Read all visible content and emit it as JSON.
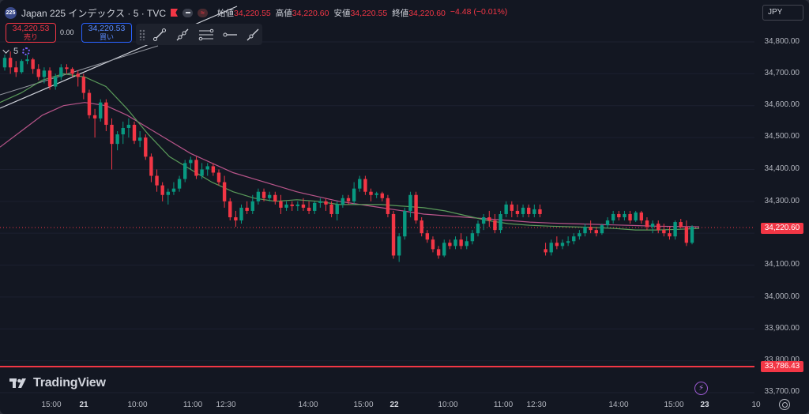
{
  "header": {
    "badge": "225",
    "title": "Japan 225 インデックス · 5 · TVC",
    "ohlc": [
      {
        "k": "始値",
        "v": "34,220.55"
      },
      {
        "k": "高値",
        "v": "34,220.60"
      },
      {
        "k": "安値",
        "v": "34,220.55"
      },
      {
        "k": "終値",
        "v": "34,220.60"
      }
    ],
    "change": "−4.48 (−0.01%)"
  },
  "trade": {
    "sell_price": "34,220.53",
    "sell_label": "売り",
    "spread": "0.00",
    "buy_price": "34,220.53",
    "buy_label": "買い"
  },
  "interval": "5",
  "currency": "JPY",
  "price_axis": [
    "34,800.00",
    "34,700.00",
    "34,600.00",
    "34,500.00",
    "34,400.00",
    "34,300.00",
    "34,100.00",
    "34,000.00",
    "33,900.00",
    "33,800.00",
    "33,700.00"
  ],
  "last_price_tag": "34,220.60",
  "low_line_tag": "33,786.43",
  "time_axis": [
    "15:00",
    "21",
    "10:00",
    "11:00",
    "12:30",
    "14:00",
    "15:00",
    "22",
    "10:00",
    "11:00",
    "12:30",
    "14:00",
    "15:00",
    "23",
    "10"
  ],
  "logo": "TradingView",
  "colors": {
    "up": "#089981",
    "down": "#f23645",
    "ma_fast": "#5a9b5a",
    "ma_slow": "#b9558a",
    "background": "#131722"
  },
  "chart_data": {
    "type": "candlestick",
    "title": "Japan 225 インデックス · 5 · TVC",
    "y_range": [
      33680,
      34870
    ],
    "last": 34220.6,
    "horizontal_line": 33786.43,
    "candles": [
      [
        34720,
        34760,
        34710,
        34750
      ],
      [
        34750,
        34770,
        34700,
        34720
      ],
      [
        34720,
        34740,
        34690,
        34705
      ],
      [
        34705,
        34745,
        34700,
        34740
      ],
      [
        34740,
        34760,
        34730,
        34745
      ],
      [
        34745,
        34750,
        34700,
        34715
      ],
      [
        34715,
        34730,
        34680,
        34690
      ],
      [
        34690,
        34720,
        34670,
        34710
      ],
      [
        34710,
        34720,
        34650,
        34660
      ],
      [
        34660,
        34700,
        34650,
        34690
      ],
      [
        34690,
        34730,
        34680,
        34720
      ],
      [
        34720,
        34730,
        34700,
        34715
      ],
      [
        34715,
        34720,
        34690,
        34700
      ],
      [
        34700,
        34710,
        34660,
        34690
      ],
      [
        34690,
        34700,
        34620,
        34640
      ],
      [
        34640,
        34650,
        34560,
        34570
      ],
      [
        34570,
        34590,
        34500,
        34560
      ],
      [
        34560,
        34620,
        34550,
        34610
      ],
      [
        34610,
        34620,
        34520,
        34540
      ],
      [
        34540,
        34560,
        34400,
        34480
      ],
      [
        34480,
        34520,
        34460,
        34510
      ],
      [
        34510,
        34550,
        34480,
        34530
      ],
      [
        34530,
        34560,
        34500,
        34540
      ],
      [
        34540,
        34550,
        34480,
        34490
      ],
      [
        34490,
        34520,
        34470,
        34500
      ],
      [
        34500,
        34510,
        34430,
        34440
      ],
      [
        34440,
        34450,
        34360,
        34380
      ],
      [
        34380,
        34400,
        34330,
        34350
      ],
      [
        34350,
        34360,
        34300,
        34320
      ],
      [
        34320,
        34340,
        34290,
        34330
      ],
      [
        34330,
        34360,
        34320,
        34340
      ],
      [
        34340,
        34380,
        34330,
        34370
      ],
      [
        34370,
        34430,
        34360,
        34420
      ],
      [
        34420,
        34440,
        34400,
        34430
      ],
      [
        34430,
        34440,
        34370,
        34380
      ],
      [
        34380,
        34420,
        34370,
        34400
      ],
      [
        34400,
        34420,
        34380,
        34410
      ],
      [
        34410,
        34420,
        34380,
        34390
      ],
      [
        34390,
        34400,
        34350,
        34360
      ],
      [
        34360,
        34380,
        34280,
        34300
      ],
      [
        34300,
        34310,
        34240,
        34250
      ],
      [
        34250,
        34270,
        34220,
        34240
      ],
      [
        34240,
        34290,
        34230,
        34280
      ],
      [
        34280,
        34300,
        34260,
        34270
      ],
      [
        34270,
        34320,
        34260,
        34300
      ],
      [
        34300,
        34340,
        34290,
        34330
      ],
      [
        34330,
        34340,
        34300,
        34310
      ],
      [
        34310,
        34330,
        34300,
        34320
      ],
      [
        34320,
        34330,
        34290,
        34300
      ],
      [
        34300,
        34320,
        34260,
        34280
      ],
      [
        34280,
        34300,
        34270,
        34290
      ],
      [
        34290,
        34300,
        34270,
        34285
      ],
      [
        34285,
        34300,
        34270,
        34290
      ],
      [
        34290,
        34310,
        34270,
        34280
      ],
      [
        34280,
        34300,
        34260,
        34270
      ],
      [
        34270,
        34300,
        34260,
        34295
      ],
      [
        34295,
        34310,
        34280,
        34300
      ],
      [
        34300,
        34310,
        34270,
        34290
      ],
      [
        34290,
        34300,
        34250,
        34260
      ],
      [
        34260,
        34300,
        34240,
        34290
      ],
      [
        34290,
        34320,
        34280,
        34310
      ],
      [
        34310,
        34320,
        34290,
        34300
      ],
      [
        34300,
        34360,
        34290,
        34340
      ],
      [
        34340,
        34380,
        34330,
        34370
      ],
      [
        34370,
        34380,
        34320,
        34330
      ],
      [
        34330,
        34340,
        34300,
        34320
      ],
      [
        34320,
        34330,
        34310,
        34325
      ],
      [
        34325,
        34330,
        34300,
        34310
      ],
      [
        34310,
        34320,
        34250,
        34260
      ],
      [
        34260,
        34270,
        34120,
        34130
      ],
      [
        34130,
        34200,
        34110,
        34190
      ],
      [
        34190,
        34280,
        34180,
        34270
      ],
      [
        34270,
        34330,
        34250,
        34320
      ],
      [
        34320,
        34330,
        34230,
        34240
      ],
      [
        34240,
        34250,
        34190,
        34200
      ],
      [
        34200,
        34210,
        34170,
        34180
      ],
      [
        34180,
        34190,
        34140,
        34150
      ],
      [
        34150,
        34160,
        34120,
        34130
      ],
      [
        34130,
        34180,
        34125,
        34170
      ],
      [
        34170,
        34180,
        34150,
        34160
      ],
      [
        34160,
        34190,
        34150,
        34180
      ],
      [
        34180,
        34200,
        34150,
        34160
      ],
      [
        34160,
        34190,
        34150,
        34175
      ],
      [
        34175,
        34210,
        34165,
        34200
      ],
      [
        34200,
        34240,
        34190,
        34230
      ],
      [
        34230,
        34260,
        34210,
        34250
      ],
      [
        34250,
        34270,
        34220,
        34240
      ],
      [
        34240,
        34260,
        34200,
        34210
      ],
      [
        34210,
        34270,
        34200,
        34260
      ],
      [
        34260,
        34300,
        34250,
        34290
      ],
      [
        34290,
        34300,
        34250,
        34270
      ],
      [
        34270,
        34290,
        34250,
        34260
      ],
      [
        34260,
        34290,
        34250,
        34280
      ],
      [
        34280,
        34290,
        34250,
        34260
      ],
      [
        34260,
        34290,
        34250,
        34275
      ],
      [
        34275,
        34290,
        34250,
        34260
      ],
      [
        34150,
        34170,
        34130,
        34140
      ],
      [
        34140,
        34180,
        34130,
        34170
      ],
      [
        34170,
        34190,
        34150,
        34160
      ],
      [
        34160,
        34180,
        34150,
        34170
      ],
      [
        34170,
        34190,
        34160,
        34175
      ],
      [
        34175,
        34200,
        34165,
        34190
      ],
      [
        34190,
        34210,
        34180,
        34200
      ],
      [
        34200,
        34230,
        34190,
        34220
      ],
      [
        34220,
        34240,
        34200,
        34210
      ],
      [
        34210,
        34220,
        34190,
        34200
      ],
      [
        34200,
        34230,
        34195,
        34225
      ],
      [
        34225,
        34250,
        34215,
        34240
      ],
      [
        34240,
        34270,
        34230,
        34260
      ],
      [
        34260,
        34270,
        34240,
        34250
      ],
      [
        34250,
        34270,
        34240,
        34260
      ],
      [
        34260,
        34270,
        34230,
        34240
      ],
      [
        34240,
        34270,
        34235,
        34265
      ],
      [
        34265,
        34270,
        34230,
        34240
      ],
      [
        34240,
        34250,
        34210,
        34220
      ],
      [
        34220,
        34240,
        34200,
        34230
      ],
      [
        34230,
        34240,
        34200,
        34210
      ],
      [
        34210,
        34230,
        34190,
        34200
      ],
      [
        34200,
        34220,
        34180,
        34190
      ],
      [
        34190,
        34240,
        34180,
        34235
      ],
      [
        34235,
        34245,
        34215,
        34220
      ],
      [
        34220,
        34240,
        34160,
        34170
      ],
      [
        34170,
        34225,
        34165,
        34220
      ]
    ],
    "ma_fast": [
      34610,
      34640,
      34680,
      34700,
      34690,
      34660,
      34590,
      34510,
      34440,
      34400,
      34360,
      34330,
      34310,
      34300,
      34305,
      34300,
      34290,
      34290,
      34290,
      34285,
      34280,
      34270,
      34255,
      34240,
      34230,
      34225,
      34222,
      34220,
      34218,
      34215,
      34210,
      34210,
      34212,
      34215
    ],
    "ma_slow": [
      34470,
      34520,
      34570,
      34600,
      34610,
      34600,
      34570,
      34530,
      34490,
      34450,
      34420,
      34390,
      34370,
      34350,
      34330,
      34315,
      34300,
      34290,
      34280,
      34270,
      34260,
      34255,
      34250,
      34245,
      34240,
      34235,
      34232,
      34230,
      34228,
      34226,
      34224,
      34222,
      34221,
      34220
    ]
  }
}
